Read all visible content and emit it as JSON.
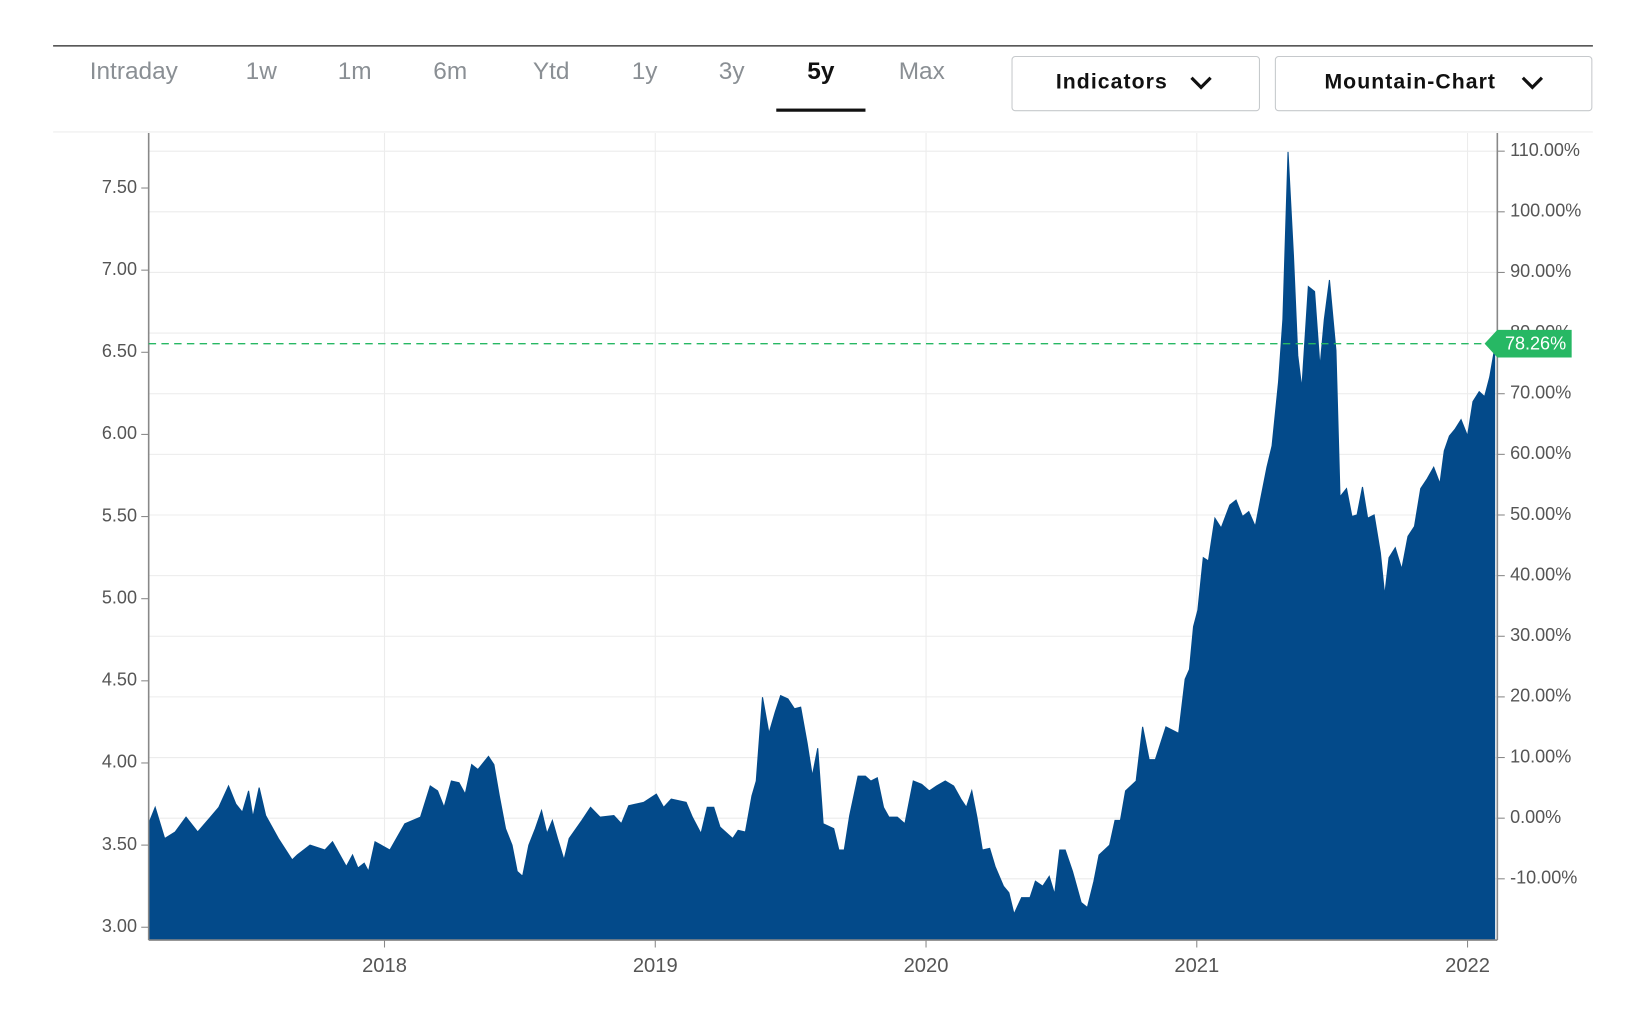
{
  "toolbar": {
    "tabs": [
      "Intraday",
      "1w",
      "1m",
      "6m",
      "Ytd",
      "1y",
      "3y",
      "5y",
      "Max"
    ],
    "active": 7,
    "buttons": [
      "Indicators",
      "Mountain-Chart"
    ]
  },
  "chart_data": {
    "type": "area",
    "color": "#034a8a",
    "grid": true,
    "x": [
      2017.129,
      2017.153,
      2017.188,
      2017.227,
      2017.267,
      2017.31,
      2017.357,
      2017.388,
      2017.424,
      2017.451,
      2017.475,
      2017.498,
      2017.514,
      2017.537,
      2017.561,
      2017.608,
      2017.659,
      2017.678,
      2017.725,
      2017.78,
      2017.808,
      2017.859,
      2017.882,
      2017.902,
      2017.925,
      2017.941,
      2017.965,
      2018.02,
      2018.075,
      2018.133,
      2018.169,
      2018.196,
      2018.22,
      2018.247,
      2018.275,
      2018.298,
      2018.322,
      2018.345,
      2018.384,
      2018.404,
      2018.424,
      2018.447,
      2018.471,
      2018.49,
      2018.51,
      2018.533,
      2018.557,
      2018.58,
      2018.6,
      2018.62,
      2018.639,
      2018.663,
      2018.682,
      2018.729,
      2018.761,
      2018.796,
      2018.847,
      2018.875,
      2018.902,
      2018.957,
      2019.004,
      2019.031,
      2019.059,
      2019.114,
      2019.137,
      2019.169,
      2019.192,
      2019.216,
      2019.239,
      2019.286,
      2019.306,
      2019.333,
      2019.357,
      2019.373,
      2019.396,
      2019.42,
      2019.443,
      2019.463,
      2019.49,
      2019.514,
      2019.537,
      2019.561,
      2019.58,
      2019.6,
      2019.62,
      2019.659,
      2019.678,
      2019.698,
      2019.718,
      2019.749,
      2019.776,
      2019.796,
      2019.82,
      2019.843,
      2019.863,
      2019.894,
      2019.922,
      2019.953,
      2019.984,
      2020.012,
      2020.039,
      2020.071,
      2020.102,
      2020.129,
      2020.149,
      2020.169,
      2020.188,
      2020.208,
      2020.235,
      2020.255,
      2020.286,
      2020.306,
      2020.325,
      2020.353,
      2020.384,
      2020.404,
      2020.431,
      2020.455,
      2020.475,
      2020.494,
      2020.514,
      2020.541,
      2020.573,
      2020.596,
      2020.62,
      2020.639,
      2020.678,
      2020.698,
      2020.718,
      2020.737,
      2020.776,
      2020.8,
      2020.824,
      2020.847,
      2020.886,
      2020.933,
      2020.957,
      2020.973,
      2020.988,
      2021.004,
      2021.024,
      2021.043,
      2021.067,
      2021.09,
      2021.122,
      2021.145,
      2021.169,
      2021.192,
      2021.216,
      2021.235,
      2021.259,
      2021.278,
      2021.302,
      2021.318,
      2021.337,
      2021.357,
      2021.373,
      2021.388,
      2021.412,
      2021.435,
      2021.455,
      2021.471,
      2021.49,
      2021.514,
      2021.529,
      2021.553,
      2021.573,
      2021.592,
      2021.612,
      2021.631,
      2021.655,
      2021.678,
      2021.694,
      2021.71,
      2021.733,
      2021.757,
      2021.78,
      2021.804,
      2021.827,
      2021.851,
      2021.875,
      2021.898,
      2021.914,
      2021.933,
      2021.953,
      2021.976,
      2022.0,
      2022.02,
      2022.043,
      2022.063,
      2022.082,
      2022.102
    ],
    "values": [
      3.63,
      3.73,
      3.54,
      3.58,
      3.67,
      3.58,
      3.67,
      3.73,
      3.86,
      3.75,
      3.7,
      3.83,
      3.67,
      3.85,
      3.68,
      3.54,
      3.41,
      3.44,
      3.5,
      3.47,
      3.52,
      3.37,
      3.44,
      3.36,
      3.39,
      3.34,
      3.52,
      3.47,
      3.63,
      3.67,
      3.86,
      3.83,
      3.73,
      3.89,
      3.88,
      3.81,
      3.99,
      3.96,
      4.04,
      3.99,
      3.8,
      3.6,
      3.5,
      3.34,
      3.31,
      3.5,
      3.6,
      3.71,
      3.57,
      3.65,
      3.54,
      3.41,
      3.54,
      3.65,
      3.73,
      3.67,
      3.68,
      3.63,
      3.74,
      3.76,
      3.81,
      3.73,
      3.78,
      3.76,
      3.67,
      3.57,
      3.73,
      3.73,
      3.61,
      3.54,
      3.59,
      3.58,
      3.8,
      3.89,
      4.4,
      4.18,
      4.31,
      4.41,
      4.39,
      4.33,
      4.34,
      4.12,
      3.92,
      4.09,
      3.63,
      3.6,
      3.47,
      3.47,
      3.68,
      3.92,
      3.92,
      3.89,
      3.91,
      3.73,
      3.67,
      3.67,
      3.63,
      3.89,
      3.87,
      3.83,
      3.86,
      3.89,
      3.86,
      3.78,
      3.73,
      3.83,
      3.67,
      3.47,
      3.48,
      3.37,
      3.25,
      3.21,
      3.08,
      3.18,
      3.18,
      3.28,
      3.25,
      3.31,
      3.2,
      3.47,
      3.47,
      3.34,
      3.15,
      3.12,
      3.28,
      3.44,
      3.5,
      3.65,
      3.65,
      3.83,
      3.89,
      4.22,
      4.02,
      4.02,
      4.22,
      4.18,
      4.51,
      4.57,
      4.83,
      4.93,
      5.25,
      5.23,
      5.49,
      5.43,
      5.57,
      5.6,
      5.5,
      5.53,
      5.44,
      5.6,
      5.8,
      5.93,
      6.32,
      6.7,
      7.72,
      7.09,
      6.48,
      6.28,
      6.9,
      6.87,
      6.41,
      6.7,
      6.94,
      6.51,
      5.62,
      5.67,
      5.5,
      5.51,
      5.68,
      5.49,
      5.51,
      5.28,
      5.02,
      5.25,
      5.31,
      5.18,
      5.38,
      5.44,
      5.67,
      5.73,
      5.8,
      5.7,
      5.9,
      5.99,
      6.03,
      6.09,
      5.99,
      6.2,
      6.26,
      6.23,
      6.35,
      6.54
    ],
    "xlim": [
      2017.129,
      2022.11
    ],
    "xticks": [
      2018,
      2019,
      2020,
      2021,
      2022
    ],
    "ylim": [
      2.922,
      7.835
    ],
    "yticks": [
      {
        "value": 3,
        "label": "3.00"
      },
      {
        "value": 3.5,
        "label": "3.50"
      },
      {
        "value": 4,
        "label": "4.00"
      },
      {
        "value": 4.5,
        "label": "4.50"
      },
      {
        "value": 5,
        "label": "5.00"
      },
      {
        "value": 5.5,
        "label": "5.50"
      },
      {
        "value": 6,
        "label": "6.00"
      },
      {
        "value": 6.5,
        "label": "6.50"
      },
      {
        "value": 7,
        "label": "7.00"
      },
      {
        "value": 7.5,
        "label": "7.50"
      }
    ],
    "y2lim": [
      -20.1,
      113.0
    ],
    "y2ticks": [
      {
        "value": -10,
        "label": "-10.00%"
      },
      {
        "value": 0,
        "label": "0.00%"
      },
      {
        "value": 10,
        "label": "10.00%"
      },
      {
        "value": 20,
        "label": "20.00%"
      },
      {
        "value": 30,
        "label": "30.00%"
      },
      {
        "value": 40,
        "label": "40.00%"
      },
      {
        "value": 50,
        "label": "50.00%"
      },
      {
        "value": 60,
        "label": "60.00%"
      },
      {
        "value": 70,
        "label": "70.00%"
      },
      {
        "value": 80,
        "label": "80.00%"
      },
      {
        "value": 90,
        "label": "90.00%"
      },
      {
        "value": 100,
        "label": "100.00%"
      },
      {
        "value": 110,
        "label": "110.00%"
      }
    ],
    "last_value": {
      "value": 78.26,
      "label": "78.26%"
    },
    "last_value_color": "#27b864"
  }
}
